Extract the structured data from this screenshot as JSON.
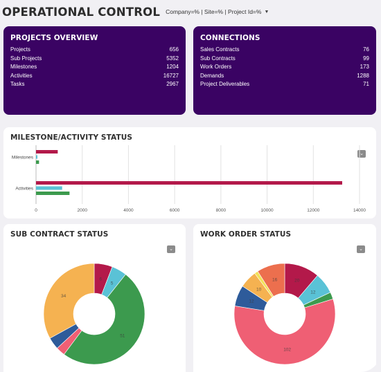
{
  "header": {
    "title": "OPERATIONAL CONTROL",
    "filter_label": "Company=% | Site=% | Project Id=%"
  },
  "projects_overview": {
    "title": "PROJECTS OVERVIEW",
    "rows": [
      {
        "label": "Projects",
        "value": "656"
      },
      {
        "label": "Sub Projects",
        "value": "5352"
      },
      {
        "label": "Milestones",
        "value": "1204"
      },
      {
        "label": "Activities",
        "value": "16727"
      },
      {
        "label": "Tasks",
        "value": "2967"
      }
    ]
  },
  "connections": {
    "title": "CONNECTIONS",
    "rows": [
      {
        "label": "Sales Contracts",
        "value": "76"
      },
      {
        "label": "Sub Contracts",
        "value": "99"
      },
      {
        "label": "Work Orders",
        "value": "173"
      },
      {
        "label": "Demands",
        "value": "1288"
      },
      {
        "label": "Project Deliverables",
        "value": "71"
      }
    ]
  },
  "milestone_activity": {
    "title": "MILESTONE/ACTIVITY STATUS",
    "menu_icon": "chevron-down-icon",
    "chart_data": {
      "type": "bar",
      "orientation": "horizontal",
      "categories": [
        "Milestones",
        "Activities"
      ],
      "series": [
        {
          "color": "#b3194a",
          "values": [
            940,
            13250
          ]
        },
        {
          "color": "#5ac2d6",
          "values": [
            60,
            1130
          ]
        },
        {
          "color": "#3c9a4e",
          "values": [
            130,
            1450
          ]
        }
      ],
      "xlim": [
        0,
        14000
      ],
      "xticks": [
        "0",
        "2000",
        "4000",
        "6000",
        "8000",
        "10000",
        "12000",
        "14000"
      ],
      "grid": true
    }
  },
  "sub_contract_status": {
    "title": "SUB CONTRACT STATUS",
    "menu_icon": "chevron-down-icon",
    "chart_data": {
      "type": "pie",
      "donut": true,
      "slices": [
        {
          "label": "6",
          "value": 6,
          "color": "#b3194a"
        },
        {
          "label": "5",
          "value": 5,
          "color": "#5ac2d6"
        },
        {
          "label": "51",
          "value": 51,
          "color": "#3c9a4e"
        },
        {
          "label": "",
          "value": 3,
          "color": "#ef5f74"
        },
        {
          "label": "",
          "value": 4,
          "color": "#2e5b9a"
        },
        {
          "label": "34",
          "value": 34,
          "color": "#f5b251"
        }
      ]
    }
  },
  "work_order_status": {
    "title": "WORK ORDER STATUS",
    "menu_icon": "chevron-down-icon",
    "chart_data": {
      "type": "pie",
      "donut": true,
      "slices": [
        {
          "label": "20",
          "value": 20,
          "color": "#b3194a"
        },
        {
          "label": "12",
          "value": 12,
          "color": "#5ac2d6"
        },
        {
          "label": "",
          "value": 4,
          "color": "#3c9a4e"
        },
        {
          "label": "102",
          "value": 102,
          "color": "#ef5f74"
        },
        {
          "label": "12",
          "value": 12,
          "color": "#2e5b9a"
        },
        {
          "label": "10",
          "value": 10,
          "color": "#f5b251"
        },
        {
          "label": "",
          "value": 2,
          "color": "#f2e25a"
        },
        {
          "label": "16",
          "value": 16,
          "color": "#ec6f4e"
        }
      ]
    }
  }
}
